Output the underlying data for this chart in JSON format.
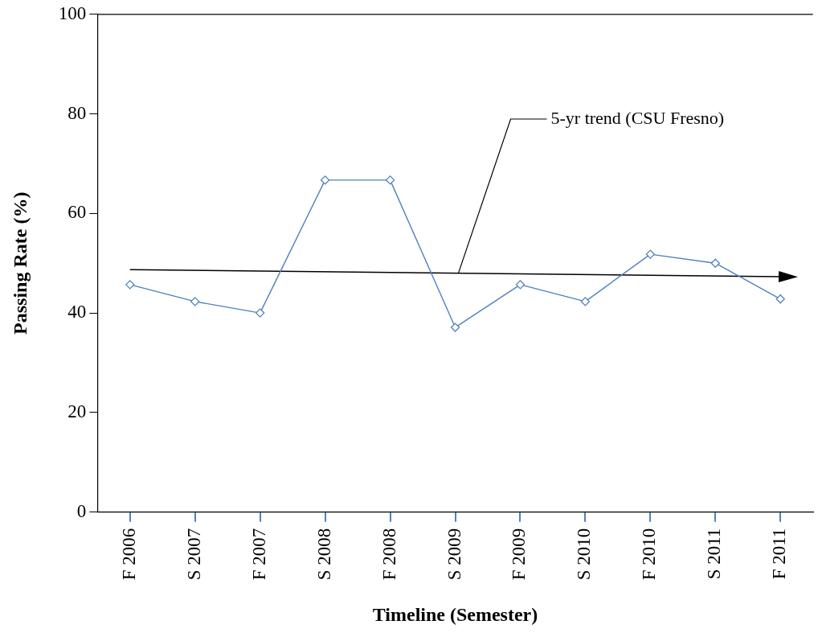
{
  "chart_data": {
    "type": "line",
    "xlabel": "Timeline (Semester)",
    "ylabel": "Passing Rate (%)",
    "categories": [
      "F 2006",
      "S 2007",
      "F 2007",
      "S 2008",
      "F 2008",
      "S 2009",
      "F 2009",
      "S 2010",
      "F 2010",
      "S 2011",
      "F 2011"
    ],
    "series": [
      {
        "color": "#4f81bd",
        "marker": "diamond",
        "values": [
          45.7,
          42.3,
          40.0,
          66.7,
          66.7,
          37.1,
          45.7,
          42.3,
          51.8,
          50.0,
          42.8
        ]
      },
      {
        "type": "line",
        "color": "#000000",
        "x": [
          "F 2006",
          "F 2011"
        ],
        "values": [
          48.7,
          47.3
        ]
      }
    ],
    "ylim": [
      0,
      100
    ],
    "yticks": [
      0,
      20,
      40,
      60,
      80,
      100
    ],
    "grid": false,
    "legend": false,
    "annotations": [
      {
        "text": "5-yr trend (CSU Fresno)",
        "x": "S 2009",
        "y": 48
      }
    ]
  }
}
